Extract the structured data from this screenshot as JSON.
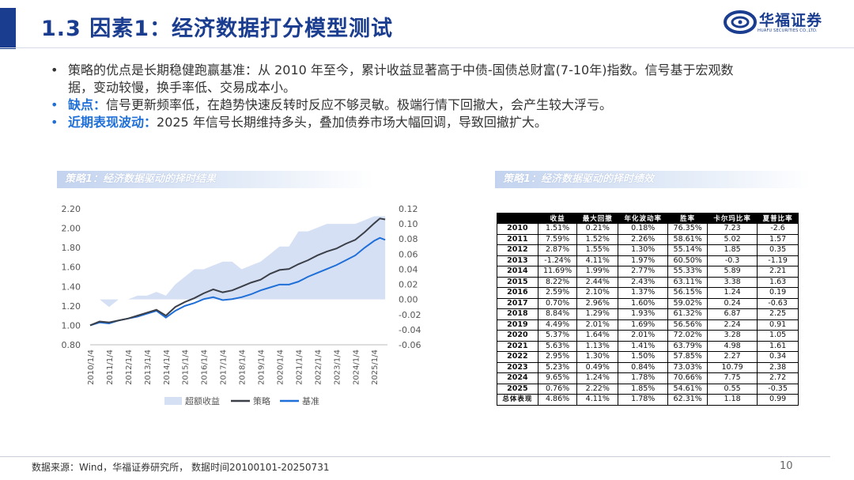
{
  "header": {
    "title": "1.3 因素1：经济数据打分模型测试",
    "logo_name": "华福证券",
    "logo_sub": "HUAFU SECURITIES CO.,LTD."
  },
  "bullets": [
    {
      "key": "",
      "text": "策略的优点是长期稳健跑赢基准：从 2010 年至今，累计收益显著高于中债-国债总财富(7-10年)指数。信号基于宏观数据，变动较慢，换手率低、交易成本小。"
    },
    {
      "key": "缺点：",
      "text": "信号更新频率低，在趋势快速反转时反应不够灵敏。极端行情下回撤大，会产生较大浮亏。"
    },
    {
      "key": "近期表现波动：",
      "text": "2025 年信号长期维持多头，叠加债券市场大幅回调，导致回撤扩大。"
    }
  ],
  "left_section_title": "策略1：经济数据驱动的择时结果",
  "right_section_title": "策略1：经济数据驱动的择时绩效",
  "colors": {
    "excess_fill": "#d6e0f4",
    "strategy_line": "#3b3f48",
    "benchmark_line": "#1f6fd8",
    "title_blue": "#1a3d8f"
  },
  "chart_data": {
    "type": "line",
    "x_ticks": [
      "2010/1/4",
      "2011/1/4",
      "2012/1/4",
      "2013/1/4",
      "2014/1/4",
      "2015/1/4",
      "2016/1/4",
      "2017/1/4",
      "2018/1/4",
      "2019/1/4",
      "2020/1/4",
      "2021/1/4",
      "2022/1/4",
      "2023/1/4",
      "2024/1/4",
      "2025/1/4"
    ],
    "y_left_ticks": [
      "2.20",
      "2.00",
      "1.80",
      "1.60",
      "1.40",
      "1.20",
      "1.00",
      "0.80"
    ],
    "y_left_range": [
      0.8,
      2.2
    ],
    "y_right_ticks": [
      "0.12",
      "0.10",
      "0.08",
      "0.06",
      "0.04",
      "0.02",
      "0.00",
      "-0.02",
      "-0.04",
      "-0.06"
    ],
    "y_right_range": [
      -0.06,
      0.12
    ],
    "x": [
      2010.0,
      2010.5,
      2011.0,
      2011.5,
      2012.0,
      2012.5,
      2013.0,
      2013.5,
      2014.0,
      2014.5,
      2015.0,
      2015.5,
      2016.0,
      2016.5,
      2017.0,
      2017.5,
      2018.0,
      2018.5,
      2019.0,
      2019.5,
      2020.0,
      2020.5,
      2021.0,
      2021.5,
      2022.0,
      2022.5,
      2023.0,
      2023.5,
      2024.0,
      2024.5,
      2025.0,
      2025.3,
      2025.58
    ],
    "series": [
      {
        "name": "超额收益",
        "kind": "area",
        "axis": "right",
        "values": [
          0.0,
          0.0,
          -0.01,
          0.0,
          0.0,
          0.005,
          0.005,
          0.01,
          0.005,
          0.02,
          0.03,
          0.04,
          0.04,
          0.045,
          0.05,
          0.05,
          0.04,
          0.045,
          0.05,
          0.06,
          0.07,
          0.07,
          0.09,
          0.09,
          0.095,
          0.1,
          0.1,
          0.1,
          0.1,
          0.105,
          0.11,
          0.11,
          0.11
        ]
      },
      {
        "name": "策略",
        "kind": "line",
        "axis": "left",
        "values": [
          1.0,
          1.04,
          1.03,
          1.05,
          1.07,
          1.1,
          1.13,
          1.16,
          1.1,
          1.19,
          1.24,
          1.28,
          1.33,
          1.37,
          1.34,
          1.36,
          1.4,
          1.44,
          1.47,
          1.53,
          1.57,
          1.58,
          1.63,
          1.67,
          1.72,
          1.76,
          1.79,
          1.84,
          1.88,
          1.96,
          2.05,
          2.1,
          2.09
        ]
      },
      {
        "name": "基准",
        "kind": "line",
        "axis": "left",
        "values": [
          1.0,
          1.03,
          1.02,
          1.05,
          1.07,
          1.09,
          1.12,
          1.15,
          1.08,
          1.15,
          1.2,
          1.23,
          1.27,
          1.29,
          1.26,
          1.27,
          1.29,
          1.32,
          1.36,
          1.39,
          1.42,
          1.42,
          1.45,
          1.5,
          1.54,
          1.58,
          1.62,
          1.67,
          1.72,
          1.8,
          1.87,
          1.9,
          1.88
        ]
      }
    ]
  },
  "table": {
    "headers": [
      "",
      "收益",
      "最大回撤",
      "年化波动率",
      "胜率",
      "卡尔玛比率",
      "夏普比率"
    ],
    "rows": [
      [
        "2010",
        "1.51%",
        "0.21%",
        "0.18%",
        "76.35%",
        "7.23",
        "-2.6"
      ],
      [
        "2011",
        "7.59%",
        "1.52%",
        "2.26%",
        "58.61%",
        "5.02",
        "1.57"
      ],
      [
        "2012",
        "2.87%",
        "1.55%",
        "1.30%",
        "55.14%",
        "1.85",
        "0.35"
      ],
      [
        "2013",
        "-1.24%",
        "4.11%",
        "1.97%",
        "60.50%",
        "-0.3",
        "-1.19"
      ],
      [
        "2014",
        "11.69%",
        "1.99%",
        "2.77%",
        "55.33%",
        "5.89",
        "2.21"
      ],
      [
        "2015",
        "8.22%",
        "2.44%",
        "2.43%",
        "63.11%",
        "3.38",
        "1.63"
      ],
      [
        "2016",
        "2.59%",
        "2.10%",
        "1.37%",
        "56.15%",
        "1.24",
        "0.19"
      ],
      [
        "2017",
        "0.70%",
        "2.96%",
        "1.60%",
        "59.02%",
        "0.24",
        "-0.63"
      ],
      [
        "2018",
        "8.84%",
        "1.29%",
        "1.93%",
        "61.32%",
        "6.87",
        "2.25"
      ],
      [
        "2019",
        "4.49%",
        "2.01%",
        "1.69%",
        "56.56%",
        "2.24",
        "0.91"
      ],
      [
        "2020",
        "5.37%",
        "1.64%",
        "2.01%",
        "72.02%",
        "3.28",
        "1.05"
      ],
      [
        "2021",
        "5.63%",
        "1.13%",
        "1.41%",
        "63.79%",
        "4.98",
        "1.61"
      ],
      [
        "2022",
        "2.95%",
        "1.30%",
        "1.50%",
        "57.85%",
        "2.27",
        "0.34"
      ],
      [
        "2023",
        "5.23%",
        "0.49%",
        "0.84%",
        "73.03%",
        "10.79",
        "2.38"
      ],
      [
        "2024",
        "9.65%",
        "1.24%",
        "1.78%",
        "70.66%",
        "7.75",
        "2.72"
      ],
      [
        "2025",
        "0.76%",
        "2.22%",
        "1.85%",
        "54.61%",
        "0.55",
        "-0.35"
      ],
      [
        "总体表现",
        "4.86%",
        "4.11%",
        "1.78%",
        "62.31%",
        "1.18",
        "0.99"
      ]
    ]
  },
  "footer": {
    "source": "数据来源：Wind，华福证券研究所， 数据时间20100101-20250731",
    "page": "10"
  }
}
